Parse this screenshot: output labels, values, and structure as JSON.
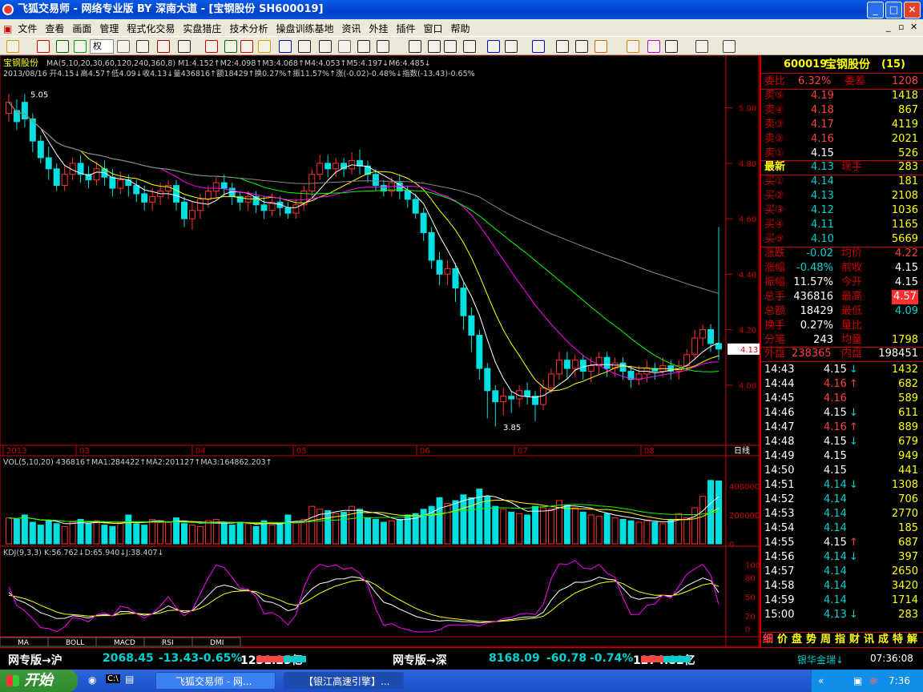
{
  "window": {
    "title": "飞狐交易师 - 网络专业版 BY 深南大道 - [宝钢股份 SH600019]"
  },
  "menu": [
    "文件",
    "查看",
    "画面",
    "管理",
    "程式化交易",
    "实盘猎庄",
    "技术分析",
    "操盘训练基地",
    "资讯",
    "外挂",
    "插件",
    "窗口",
    "帮助"
  ],
  "toolbar": {
    "quan_label": "权"
  },
  "chart": {
    "title": "宝钢股份",
    "ma_text": "MA(5,10,20,30,60,120,240,360,8) M1:4.152↑M2:4.098↑M3:4.068↑M4:4.053↑M5:4.197↓M6:4.485↓",
    "info_text": "2013/08/16 开4.15↓高4.57↑低4.09↓收4.13↓量436816↑额18429↑换0.27%↑振11.57%↑涨(-0.02)-0.48%↓指数(-13.43)-0.65%",
    "hi_label": "5.05",
    "lo_label": "3.85",
    "current_price_tag": "4.13",
    "price_ticks": [
      "5.00",
      "4.80",
      "4.60",
      "4.40",
      "4.20",
      "4.00"
    ],
    "date_labels": [
      "2013",
      "03",
      "04",
      "05",
      "06",
      "07",
      "08"
    ],
    "period": "日线",
    "vol_text": "VOL(5,10,20) 436816↑MA1:284422↑MA2:201127↑MA3:164862.203↑",
    "vol_ticks": [
      "400000",
      "200000",
      "0"
    ],
    "kdj_text": "KDJ(9,3,3) K:56.762↓D:65.940↓J:38.407↓",
    "kdj_ticks": [
      "100",
      "80",
      "50",
      "20",
      "0"
    ],
    "tabs": [
      "MA",
      "BOLL",
      "MACD",
      "RSI",
      "DMI"
    ]
  },
  "quote": {
    "code": "600019",
    "name": "宝钢股份",
    "count": "(15)",
    "webi_label": "委比",
    "webi": "6.32%",
    "weicha_label": "委差",
    "weicha": "1208",
    "sells": [
      {
        "l": "卖⑤",
        "p": "4.19",
        "v": "1418"
      },
      {
        "l": "卖④",
        "p": "4.18",
        "v": "867"
      },
      {
        "l": "卖③",
        "p": "4.17",
        "v": "4119"
      },
      {
        "l": "卖②",
        "p": "4.16",
        "v": "2021"
      },
      {
        "l": "卖①",
        "p": "4.15",
        "v": "526"
      }
    ],
    "latest_label": "最新",
    "latest": "4.13",
    "xianshou_label": "现手",
    "xianshou": "283",
    "buys": [
      {
        "l": "买①",
        "p": "4.14",
        "v": "181"
      },
      {
        "l": "买②",
        "p": "4.13",
        "v": "2108"
      },
      {
        "l": "买③",
        "p": "4.12",
        "v": "1036"
      },
      {
        "l": "买④",
        "p": "4.11",
        "v": "1165"
      },
      {
        "l": "买⑤",
        "p": "4.10",
        "v": "5669"
      }
    ],
    "stats": [
      {
        "l1": "涨跌",
        "v1": "-0.02",
        "l2": "均价",
        "v2": "4.22"
      },
      {
        "l1": "涨幅",
        "v1": "-0.48%",
        "l2": "前收",
        "v2": "4.15"
      },
      {
        "l1": "振幅",
        "v1": "11.57%",
        "l2": "今开",
        "v2": "4.15"
      },
      {
        "l1": "总手",
        "v1": "436816",
        "l2": "最高",
        "v2": "4.57"
      },
      {
        "l1": "总额",
        "v1": "18429",
        "l2": "最低",
        "v2": "4.09"
      },
      {
        "l1": "换手",
        "v1": "0.27%",
        "l2": "量比",
        "v2": ""
      },
      {
        "l1": "分笔",
        "v1": "243",
        "l2": "均量",
        "v2": "1798"
      }
    ],
    "waipan_label": "外盘",
    "waipan": "238365",
    "neipan_label": "内盘",
    "neipan": "198451",
    "ticks": [
      {
        "t": "14:43",
        "p": "4.15",
        "a": "↓",
        "v": "1432"
      },
      {
        "t": "14:44",
        "p": "4.16",
        "a": "↑",
        "v": "682"
      },
      {
        "t": "14:45",
        "p": "4.16",
        "a": "",
        "v": "589"
      },
      {
        "t": "14:46",
        "p": "4.15",
        "a": "↓",
        "v": "611"
      },
      {
        "t": "14:47",
        "p": "4.16",
        "a": "↑",
        "v": "889"
      },
      {
        "t": "14:48",
        "p": "4.15",
        "a": "↓",
        "v": "679"
      },
      {
        "t": "14:49",
        "p": "4.15",
        "a": "",
        "v": "949"
      },
      {
        "t": "14:50",
        "p": "4.15",
        "a": "",
        "v": "441"
      },
      {
        "t": "14:51",
        "p": "4.14",
        "a": "↓",
        "v": "1308"
      },
      {
        "t": "14:52",
        "p": "4.14",
        "a": "",
        "v": "706"
      },
      {
        "t": "14:53",
        "p": "4.14",
        "a": "",
        "v": "2770"
      },
      {
        "t": "14:54",
        "p": "4.14",
        "a": "",
        "v": "185"
      },
      {
        "t": "14:55",
        "p": "4.15",
        "a": "↑",
        "v": "687"
      },
      {
        "t": "14:56",
        "p": "4.14",
        "a": "↓",
        "v": "397"
      },
      {
        "t": "14:57",
        "p": "4.14",
        "a": "",
        "v": "2650"
      },
      {
        "t": "14:58",
        "p": "4.14",
        "a": "",
        "v": "3420"
      },
      {
        "t": "14:59",
        "p": "4.14",
        "a": "",
        "v": "1714"
      },
      {
        "t": "15:00",
        "p": "4.13",
        "a": "↓",
        "v": "283"
      }
    ],
    "bottom_tabs": [
      "细",
      "价",
      "盘",
      "势",
      "周",
      "指",
      "财",
      "讯",
      "成",
      "特",
      "解"
    ]
  },
  "index": {
    "sh_label": "网专版→沪",
    "sh_val": "2068.45",
    "sh_chg": "-13.43",
    "sh_pct": "-0.65%",
    "sh_amt": "1231.25亿",
    "sz_label": "网专版→深",
    "sz_val": "8168.09",
    "sz_chg": "-60.78",
    "sz_pct": "-0.74%",
    "sz_amt": "1274.82亿",
    "ticker": "银华金瑞↓",
    "time": "07:36:08"
  },
  "taskbar": {
    "start": "开始",
    "task1": "飞狐交易师 - 网...",
    "task2": "【银江高速引擎】...",
    "clock": "7:36"
  },
  "chart_data": {
    "type": "candlestick",
    "price_range": [
      3.78,
      5.1
    ],
    "candles": [
      [
        4.98,
        5.02,
        5.05,
        4.95
      ],
      [
        4.99,
        4.95,
        5.03,
        4.92
      ],
      [
        5.02,
        4.96,
        5.05,
        4.93
      ],
      [
        4.96,
        4.88,
        4.98,
        4.84
      ],
      [
        4.88,
        4.82,
        4.9,
        4.8
      ],
      [
        4.82,
        4.78,
        4.86,
        4.74
      ],
      [
        4.78,
        4.72,
        4.8,
        4.7
      ],
      [
        4.72,
        4.76,
        4.79,
        4.7
      ],
      [
        4.76,
        4.8,
        4.82,
        4.74
      ],
      [
        4.8,
        4.76,
        4.83,
        4.73
      ],
      [
        4.76,
        4.74,
        4.79,
        4.71
      ],
      [
        4.74,
        4.78,
        4.8,
        4.72
      ],
      [
        4.78,
        4.75,
        4.81,
        4.72
      ],
      [
        4.75,
        4.71,
        4.78,
        4.68
      ],
      [
        4.71,
        4.74,
        4.77,
        4.69
      ],
      [
        4.74,
        4.72,
        4.76,
        4.68
      ],
      [
        4.72,
        4.69,
        4.74,
        4.66
      ],
      [
        4.69,
        4.66,
        4.72,
        4.63
      ],
      [
        4.66,
        4.68,
        4.71,
        4.63
      ],
      [
        4.68,
        4.7,
        4.73,
        4.65
      ],
      [
        4.7,
        4.72,
        4.74,
        4.67
      ],
      [
        4.72,
        4.66,
        4.74,
        4.63
      ],
      [
        4.66,
        4.6,
        4.68,
        4.57
      ],
      [
        4.6,
        4.63,
        4.66,
        4.56
      ],
      [
        4.63,
        4.67,
        4.69,
        4.6
      ],
      [
        4.67,
        4.7,
        4.72,
        4.64
      ],
      [
        4.7,
        4.73,
        4.75,
        4.67
      ],
      [
        4.73,
        4.71,
        4.76,
        4.68
      ],
      [
        4.71,
        4.68,
        4.73,
        4.65
      ],
      [
        4.68,
        4.66,
        4.7,
        4.63
      ],
      [
        4.66,
        4.68,
        4.7,
        4.63
      ],
      [
        4.68,
        4.65,
        4.7,
        4.62
      ],
      [
        4.65,
        4.63,
        4.68,
        4.6
      ],
      [
        4.63,
        4.66,
        4.69,
        4.61
      ],
      [
        4.66,
        4.64,
        4.68,
        4.61
      ],
      [
        4.64,
        4.62,
        4.66,
        4.6
      ],
      [
        4.62,
        4.65,
        4.67,
        4.6
      ],
      [
        4.65,
        4.7,
        4.72,
        4.63
      ],
      [
        4.7,
        4.76,
        4.78,
        4.68
      ],
      [
        4.76,
        4.8,
        4.83,
        4.74
      ],
      [
        4.8,
        4.78,
        4.83,
        4.75
      ],
      [
        4.78,
        4.8,
        4.82,
        4.75
      ],
      [
        4.8,
        4.78,
        4.82,
        4.75
      ],
      [
        4.78,
        4.81,
        4.84,
        4.76
      ],
      [
        4.81,
        4.79,
        4.85,
        4.76
      ],
      [
        4.79,
        4.76,
        4.81,
        4.73
      ],
      [
        4.76,
        4.72,
        4.78,
        4.7
      ],
      [
        4.72,
        4.7,
        4.74,
        4.68
      ],
      [
        4.7,
        4.73,
        4.75,
        4.68
      ],
      [
        4.73,
        4.7,
        4.76,
        4.67
      ],
      [
        4.7,
        4.67,
        4.72,
        4.64
      ],
      [
        4.67,
        4.62,
        4.69,
        4.6
      ],
      [
        4.62,
        4.55,
        4.64,
        4.52
      ],
      [
        4.55,
        4.45,
        4.57,
        4.42
      ],
      [
        4.45,
        4.4,
        4.48,
        4.36
      ],
      [
        4.4,
        4.42,
        4.45,
        4.36
      ],
      [
        4.42,
        4.35,
        4.44,
        4.3
      ],
      [
        4.35,
        4.25,
        4.37,
        4.2
      ],
      [
        4.25,
        4.18,
        4.28,
        4.12
      ],
      [
        4.18,
        4.06,
        4.2,
        4.02
      ],
      [
        4.06,
        3.98,
        4.08,
        3.88
      ],
      [
        3.98,
        3.94,
        4.0,
        3.85
      ],
      [
        3.94,
        3.96,
        3.99,
        3.89
      ],
      [
        3.96,
        3.95,
        3.98,
        3.9
      ],
      [
        3.95,
        3.98,
        4.0,
        3.92
      ],
      [
        3.98,
        3.96,
        4.01,
        3.93
      ],
      [
        3.96,
        3.93,
        3.98,
        3.87
      ],
      [
        3.93,
        3.99,
        4.02,
        3.91
      ],
      [
        3.99,
        4.04,
        4.06,
        3.97
      ],
      [
        4.04,
        4.09,
        4.12,
        4.02
      ],
      [
        4.09,
        4.06,
        4.12,
        4.02
      ],
      [
        4.06,
        4.09,
        4.11,
        4.03
      ],
      [
        4.09,
        4.05,
        4.11,
        4.02
      ],
      [
        4.05,
        4.07,
        4.1,
        4.01
      ],
      [
        4.07,
        4.1,
        4.12,
        4.04
      ],
      [
        4.1,
        4.06,
        4.12,
        4.03
      ],
      [
        4.06,
        4.08,
        4.1,
        4.03
      ],
      [
        4.08,
        4.05,
        4.1,
        4.02
      ],
      [
        4.05,
        4.02,
        4.07,
        3.99
      ],
      [
        4.02,
        4.04,
        4.07,
        4.0
      ],
      [
        4.04,
        4.06,
        4.09,
        4.01
      ],
      [
        4.06,
        4.05,
        4.08,
        4.02
      ],
      [
        4.05,
        4.07,
        4.1,
        4.03
      ],
      [
        4.07,
        4.05,
        4.09,
        4.02
      ],
      [
        4.05,
        4.07,
        4.09,
        4.02
      ],
      [
        4.07,
        4.11,
        4.13,
        4.05
      ],
      [
        4.11,
        4.17,
        4.2,
        4.09
      ],
      [
        4.17,
        4.2,
        4.22,
        4.14
      ],
      [
        4.2,
        4.15,
        4.22,
        4.12
      ],
      [
        4.15,
        4.13,
        4.57,
        4.09
      ]
    ],
    "volume": {
      "values": [
        180,
        170,
        200,
        150,
        130,
        160,
        140,
        120,
        150,
        170,
        140,
        160,
        130,
        120,
        150,
        200,
        140,
        130,
        170,
        160,
        150,
        180,
        140,
        130,
        120,
        160,
        170,
        140,
        130,
        150,
        140,
        120,
        160,
        130,
        140,
        200,
        150,
        170,
        260,
        240,
        230,
        210,
        220,
        260,
        240,
        180,
        170,
        150,
        160,
        170,
        200,
        210,
        240,
        260,
        320,
        280,
        300,
        340,
        320,
        380,
        330,
        260,
        240,
        220,
        210,
        200,
        260,
        250,
        240,
        300,
        270,
        250,
        220,
        200,
        190,
        210,
        180,
        170,
        160,
        150,
        160,
        150,
        140,
        170,
        210,
        180,
        250,
        330,
        440,
        436
      ],
      "ylim": [
        0,
        500
      ]
    },
    "kdj": {
      "series": [
        {
          "name": "K"
        },
        {
          "name": "D"
        },
        {
          "name": "J"
        }
      ]
    }
  }
}
